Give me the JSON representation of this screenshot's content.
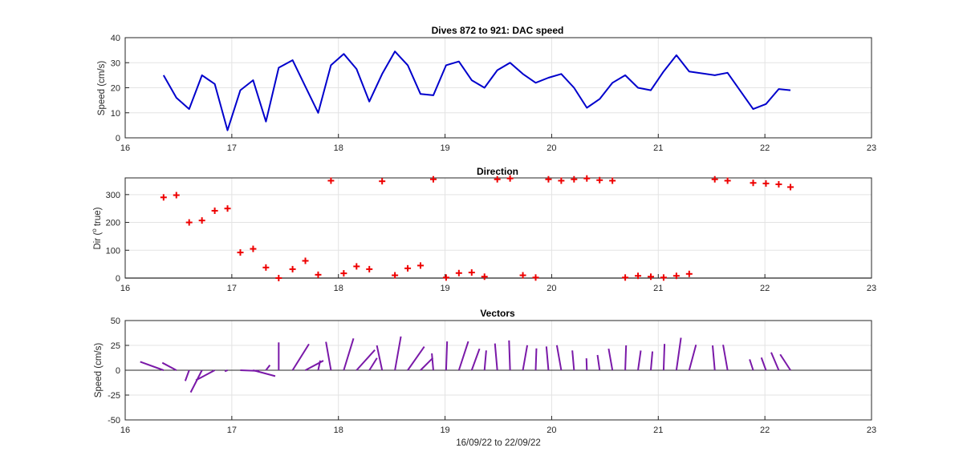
{
  "chart_data": [
    {
      "type": "line",
      "title": "Dives 872 to 921: DAC speed",
      "xlabel": "",
      "ylabel": "Speed (cm/s)",
      "xlim": [
        16,
        23
      ],
      "ylim": [
        0,
        40
      ],
      "xticks": [
        16,
        17,
        18,
        19,
        20,
        21,
        22,
        23
      ],
      "yticks": [
        0,
        10,
        20,
        30,
        40
      ],
      "grid": true,
      "color": "#0000cc",
      "series": [
        {
          "x": [
            16.36,
            16.48,
            16.6,
            16.72,
            16.84,
            16.96,
            17.08,
            17.2,
            17.32,
            17.44,
            17.57,
            17.69,
            17.81,
            17.93,
            18.05,
            18.17,
            18.29,
            18.41,
            18.53,
            18.65,
            18.77,
            18.89,
            19.01,
            19.13,
            19.25,
            19.37,
            19.49,
            19.61,
            19.73,
            19.85,
            19.97,
            20.09,
            20.21,
            20.33,
            20.45,
            20.57,
            20.69,
            20.81,
            20.93,
            21.05,
            21.17,
            21.29,
            21.53,
            21.65,
            21.89,
            22.01,
            22.13,
            22.24
          ],
          "values": [
            25,
            16,
            11.5,
            25,
            21.5,
            3,
            19,
            23,
            6.5,
            28,
            31,
            20.5,
            10,
            29,
            33.5,
            27.5,
            14.5,
            25.5,
            34.5,
            29,
            17.5,
            17,
            29,
            30.5,
            23,
            20,
            27,
            30,
            25.5,
            22,
            24,
            25.5,
            20,
            12,
            15.5,
            22,
            25,
            20,
            19,
            26.5,
            33,
            26.5,
            25,
            26,
            11.5,
            13.5,
            19.5,
            19
          ]
        }
      ]
    },
    {
      "type": "scatter",
      "title": "Direction",
      "xlabel": "",
      "ylabel_main": "Dir (",
      "ylabel_sup": "o",
      "ylabel_tail": " true)",
      "xlim": [
        16,
        23
      ],
      "ylim": [
        0,
        360
      ],
      "xticks": [
        16,
        17,
        18,
        19,
        20,
        21,
        22,
        23
      ],
      "yticks": [
        0,
        100,
        200,
        300
      ],
      "grid": true,
      "marker": "+",
      "color": "#ee0000",
      "series": [
        {
          "x": [
            16.36,
            16.48,
            16.6,
            16.72,
            16.84,
            16.96,
            17.08,
            17.2,
            17.32,
            17.44,
            17.57,
            17.69,
            17.81,
            17.93,
            18.05,
            18.17,
            18.29,
            18.41,
            18.53,
            18.65,
            18.77,
            18.89,
            19.01,
            19.13,
            19.25,
            19.37,
            19.49,
            19.61,
            19.73,
            19.85,
            19.97,
            20.09,
            20.21,
            20.33,
            20.45,
            20.57,
            20.69,
            20.81,
            20.93,
            21.05,
            21.17,
            21.29,
            21.53,
            21.65,
            21.89,
            22.01,
            22.13,
            22.24
          ],
          "values": [
            290,
            298,
            200,
            207,
            242,
            250,
            92,
            105,
            38,
            0,
            32,
            62,
            12,
            350,
            17,
            42,
            32,
            348,
            10,
            35,
            45,
            355,
            2,
            18,
            20,
            5,
            355,
            358,
            10,
            2,
            355,
            350,
            355,
            358,
            352,
            350,
            2,
            8,
            5,
            2,
            8,
            15,
            355,
            350,
            342,
            340,
            337,
            327
          ]
        }
      ]
    },
    {
      "type": "quiver",
      "title": "Vectors",
      "xlabel": "16/09/22 to 22/09/22",
      "ylabel": "Speed (cm/s)",
      "xlim": [
        16,
        23
      ],
      "ylim": [
        -50,
        50
      ],
      "xticks": [
        16,
        17,
        18,
        19,
        20,
        21,
        22,
        23
      ],
      "yticks": [
        -50,
        -25,
        0,
        25,
        50
      ],
      "grid": true,
      "color": "#7a19a8"
    }
  ]
}
